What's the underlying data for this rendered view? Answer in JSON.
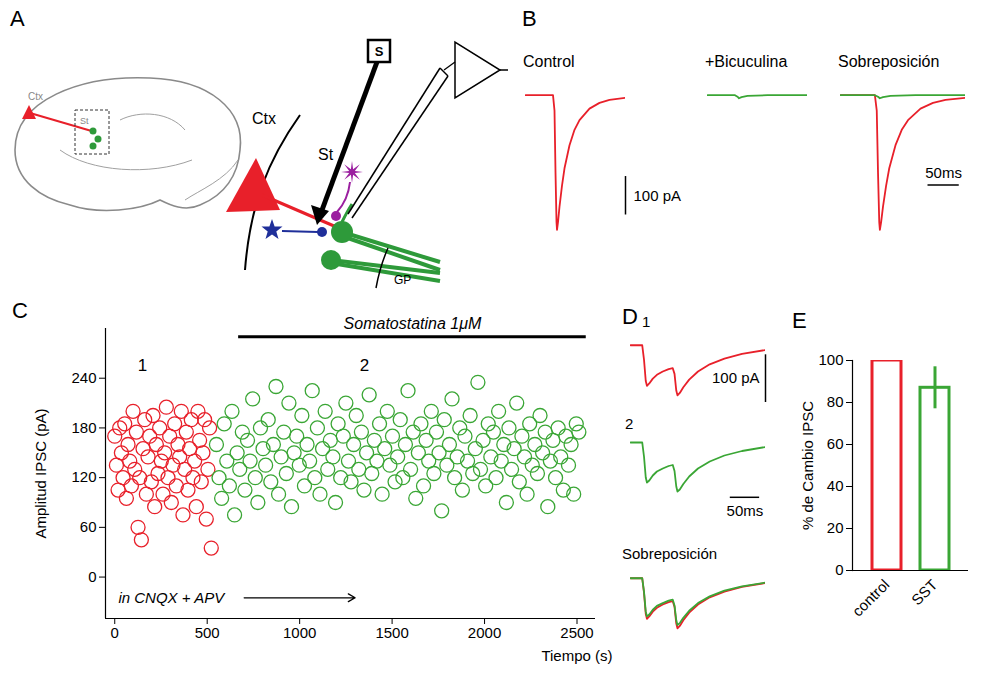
{
  "chart_data": [
    {
      "panel": "A",
      "type": "diagram",
      "labels": {
        "brain_cortex": "Ctx",
        "brain_striatum": "St",
        "cortex": "Ctx",
        "striatum": "St",
        "stimulus": "S",
        "globus_pallidus": "GP"
      }
    },
    {
      "panel": "B",
      "type": "line",
      "tick_labels": false,
      "xlim": [
        0,
        200
      ],
      "ylim": [
        -370,
        20
      ],
      "overlay_title": "Sobreposición",
      "scale_bars": {
        "y": {
          "value": 100,
          "label": "100 pA"
        },
        "x": {
          "value": 50,
          "label": "50ms"
        }
      },
      "series": [
        {
          "name": "Control",
          "color": "#e8202a",
          "x": [
            0,
            55,
            58,
            60,
            62,
            63,
            65,
            68,
            73,
            78,
            88,
            98,
            108,
            128,
            148,
            168,
            200
          ],
          "values": [
            0,
            0,
            -40,
            -200,
            -330,
            -350,
            -330,
            -290,
            -235,
            -190,
            -130,
            -90,
            -65,
            -35,
            -20,
            -12,
            -7
          ]
        },
        {
          "name": "+Bicuculina",
          "color": "#3aa635",
          "x": [
            0,
            55,
            60,
            63,
            68,
            80,
            120,
            200
          ],
          "values": [
            0,
            0,
            -4,
            -8,
            -5,
            -2,
            0,
            0
          ]
        }
      ]
    },
    {
      "panel": "C",
      "type": "scatter",
      "marker": "circle",
      "xlabel": "Tiempo (s)",
      "ylabel": "Amplitud IPSC (pA)",
      "xlim": [
        -50,
        2600
      ],
      "ylim": [
        -50,
        300
      ],
      "xticks": [
        0,
        500,
        1000,
        1500,
        2000,
        2500
      ],
      "yticks": [
        0,
        60,
        120,
        180,
        240
      ],
      "series": [
        {
          "color": "#e8202a",
          "x": [
            0,
            9,
            18,
            27,
            36,
            45,
            54,
            63,
            72,
            81,
            90,
            99,
            108,
            117,
            126,
            135,
            144,
            153,
            162,
            171,
            180,
            189,
            198,
            207,
            216,
            225,
            234,
            243,
            252,
            261,
            270,
            279,
            288,
            297,
            306,
            315,
            324,
            333,
            342,
            351,
            360,
            369,
            378,
            387,
            396,
            405,
            414,
            423,
            432,
            441,
            450,
            459,
            468,
            477,
            486,
            495,
            504,
            513,
            522
          ],
          "values": [
            170,
            135,
            105,
            180,
            150,
            120,
            185,
            95,
            160,
            140,
            110,
            200,
            130,
            175,
            60,
            120,
            45,
            155,
            190,
            100,
            145,
            170,
            115,
            195,
            85,
            160,
            125,
            180,
            140,
            100,
            150,
            205,
            120,
            170,
            90,
            135,
            185,
            110,
            160,
            145,
            200,
            75,
            130,
            175,
            105,
            155,
            190,
            120,
            140,
            85,
            200,
            165,
            115,
            150,
            190,
            70,
            130,
            180,
            35
          ]
        },
        {
          "color": "#3aa635",
          "x": [
            550,
            564,
            578,
            592,
            606,
            620,
            634,
            648,
            662,
            676,
            690,
            704,
            718,
            732,
            746,
            760,
            774,
            788,
            802,
            816,
            830,
            844,
            858,
            872,
            886,
            900,
            914,
            928,
            942,
            956,
            970,
            984,
            998,
            1012,
            1026,
            1040,
            1054,
            1068,
            1082,
            1096,
            1110,
            1124,
            1138,
            1152,
            1166,
            1180,
            1194,
            1208,
            1222,
            1236,
            1250,
            1264,
            1278,
            1292,
            1306,
            1320,
            1334,
            1348,
            1362,
            1376,
            1390,
            1404,
            1418,
            1432,
            1446,
            1460,
            1474,
            1488,
            1502,
            1516,
            1530,
            1544,
            1558,
            1572,
            1586,
            1600,
            1614,
            1628,
            1642,
            1656,
            1670,
            1684,
            1698,
            1712,
            1726,
            1740,
            1754,
            1768,
            1782,
            1796,
            1810,
            1824,
            1838,
            1852,
            1866,
            1880,
            1894,
            1908,
            1922,
            1936,
            1950,
            1964,
            1978,
            1992,
            2006,
            2020,
            2034,
            2048,
            2062,
            2076,
            2090,
            2104,
            2118,
            2132,
            2146,
            2160,
            2174,
            2188,
            2202,
            2216,
            2230,
            2244,
            2258,
            2272,
            2286,
            2300,
            2314,
            2328,
            2342,
            2356,
            2370,
            2384,
            2398,
            2412,
            2426,
            2440,
            2454,
            2468,
            2482,
            2496,
            2510
          ],
          "values": [
            160,
            120,
            95,
            185,
            140,
            110,
            200,
            75,
            150,
            130,
            175,
            105,
            165,
            140,
            215,
            120,
            90,
            180,
            155,
            135,
            190,
            115,
            160,
            230,
            100,
            145,
            175,
            125,
            210,
            85,
            150,
            170,
            135,
            195,
            110,
            160,
            140,
            225,
            120,
            180,
            100,
            155,
            200,
            130,
            165,
            145,
            90,
            185,
            120,
            170,
            210,
            140,
            115,
            160,
            195,
            130,
            175,
            105,
            150,
            220,
            125,
            165,
            140,
            185,
            100,
            155,
            200,
            135,
            170,
            115,
            145,
            190,
            120,
            160,
            225,
            130,
            175,
            95,
            150,
            185,
            110,
            165,
            140,
            200,
            125,
            175,
            150,
            80,
            190,
            135,
            160,
            215,
            120,
            145,
            180,
            105,
            170,
            140,
            195,
            125,
            155,
            235,
            130,
            165,
            110,
            185,
            145,
            175,
            120,
            200,
            140,
            160,
            90,
            180,
            130,
            155,
            210,
            115,
            170,
            145,
            100,
            185,
            135,
            160,
            125,
            195,
            150,
            175,
            85,
            140,
            165,
            120,
            180,
            145,
            105,
            170,
            135,
            160,
            100,
            185,
            175
          ]
        }
      ],
      "annotations": [
        {
          "text": "Somatostatina 1μM",
          "x1": 670,
          "x2": 2550,
          "y": 290
        },
        {
          "text": "1",
          "x": 150,
          "y": 255
        },
        {
          "text": "2",
          "x": 1350,
          "y": 255
        },
        {
          "text": "in CNQX + APV",
          "x": 20,
          "y": -25,
          "arrow_x1": 700,
          "arrow_x2": 1300
        }
      ]
    },
    {
      "panel": "D",
      "type": "line",
      "tick_labels": false,
      "xlim": [
        0,
        230
      ],
      "ylim": [
        -120,
        10
      ],
      "overlay_title": "Sobreposición",
      "scale_bars": {
        "y": {
          "value": 100,
          "label": "100 pA"
        },
        "x": {
          "value": 50,
          "label": "50ms"
        }
      },
      "series": [
        {
          "name": "1",
          "color": "#e8202a",
          "x": [
            0,
            20,
            23,
            26,
            28,
            32,
            38,
            45,
            55,
            65,
            72,
            75,
            78,
            80,
            84,
            90,
            100,
            115,
            135,
            160,
            190,
            230
          ],
          "values": [
            0,
            0,
            -30,
            -75,
            -85,
            -80,
            -70,
            -62,
            -55,
            -50,
            -48,
            -60,
            -95,
            -105,
            -100,
            -88,
            -72,
            -55,
            -40,
            -28,
            -18,
            -10
          ]
        },
        {
          "name": "2",
          "color": "#3aa635",
          "x": [
            0,
            20,
            23,
            26,
            28,
            32,
            38,
            45,
            55,
            65,
            72,
            75,
            78,
            80,
            84,
            90,
            100,
            115,
            135,
            160,
            190,
            230
          ],
          "values": [
            0,
            0,
            -28,
            -70,
            -80,
            -76,
            -66,
            -58,
            -52,
            -47,
            -45,
            -57,
            -88,
            -98,
            -94,
            -83,
            -68,
            -52,
            -38,
            -26,
            -17,
            -9
          ]
        }
      ]
    },
    {
      "panel": "E",
      "type": "bar",
      "ylabel": "% de Cambio IPSC",
      "categories": [
        "control",
        "SST"
      ],
      "values": [
        100,
        87
      ],
      "errors": [
        null,
        10
      ],
      "colors": [
        "#e8202a",
        "#3aa635"
      ],
      "ylim": [
        0,
        100
      ],
      "yticks": [
        0,
        20,
        40,
        60,
        80,
        100
      ]
    }
  ]
}
